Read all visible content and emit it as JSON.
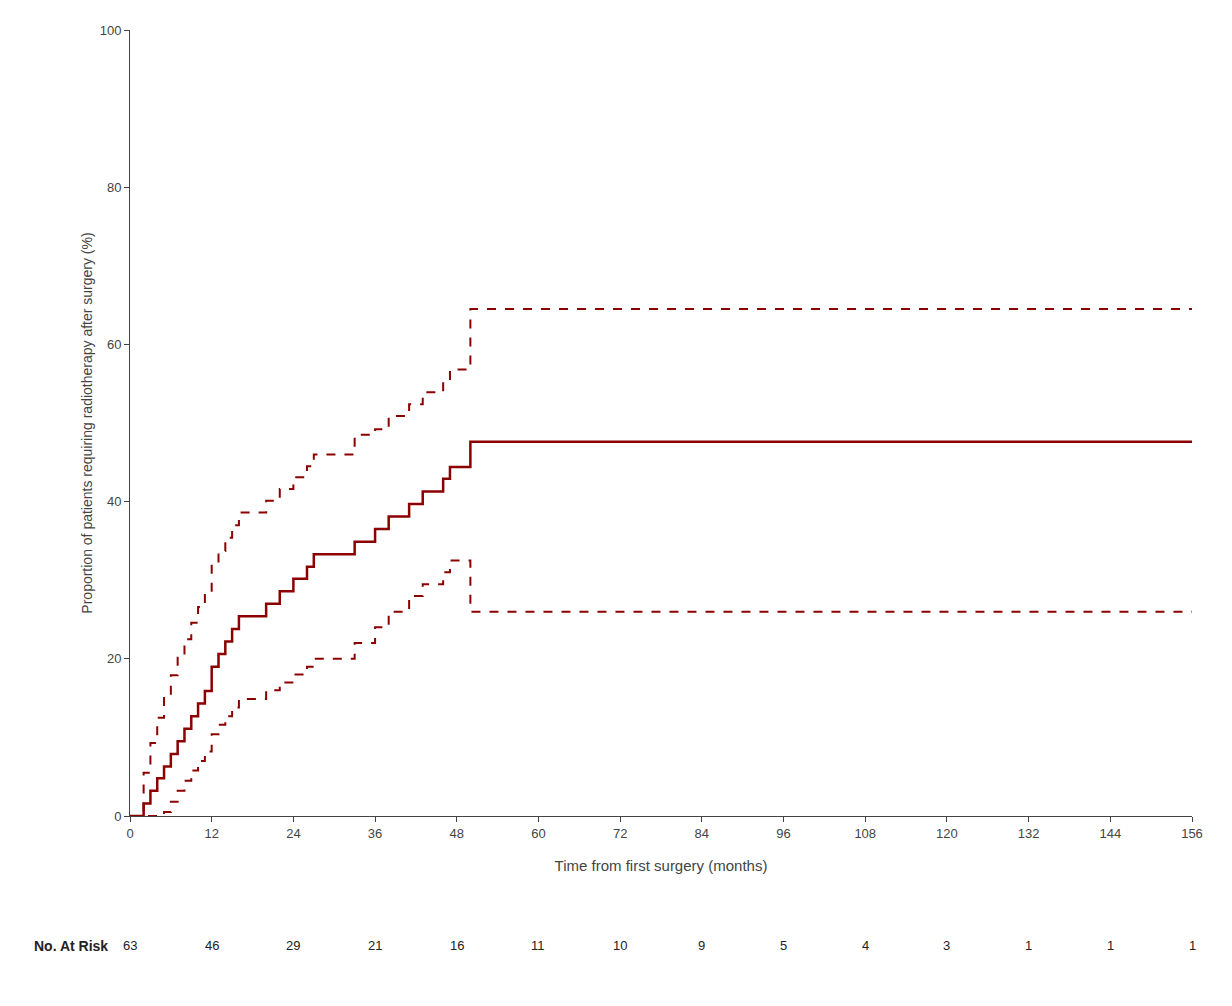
{
  "chart_data": {
    "type": "step",
    "xlabel": "Time from first surgery (months)",
    "ylabel": "Proportion of patients requiring radiotherapy after surgery (%)",
    "x": [
      0,
      1,
      2,
      3,
      4,
      5,
      6,
      7,
      8,
      9,
      10,
      11,
      12,
      13,
      14,
      15,
      16,
      18,
      20,
      22,
      24,
      26,
      27,
      30,
      33,
      36,
      38,
      41,
      43,
      46,
      47,
      48,
      50,
      54,
      57,
      156
    ],
    "series": [
      {
        "color": "#8B0000",
        "line_style": "solid",
        "values": [
          0,
          0,
          1.6,
          3.2,
          4.8,
          6.3,
          7.9,
          9.5,
          11.1,
          12.7,
          14.3,
          15.9,
          19.0,
          20.6,
          22.2,
          23.8,
          25.4,
          25.4,
          27.0,
          28.6,
          30.2,
          31.7,
          33.3,
          33.3,
          34.9,
          36.5,
          38.1,
          39.7,
          41.3,
          42.9,
          44.4,
          44.4,
          47.6,
          47.6,
          47.6,
          47.6
        ]
      },
      {
        "color": "#8B0000",
        "line_style": "dashed",
        "values": [
          0,
          0,
          5.5,
          9.3,
          12.5,
          15.3,
          17.9,
          20.3,
          22.5,
          24.6,
          26.6,
          28.5,
          32.0,
          33.7,
          35.4,
          37.0,
          38.6,
          38.6,
          40.1,
          41.6,
          43.1,
          44.5,
          46.0,
          46.0,
          48.5,
          49.2,
          50.9,
          52.4,
          53.9,
          55.4,
          56.8,
          56.8,
          64.5,
          64.5,
          64.5,
          64.5
        ]
      },
      {
        "color": "#8B0000",
        "line_style": "dashed",
        "values": [
          0,
          0,
          0,
          0,
          0,
          0.5,
          1.8,
          3.2,
          4.5,
          5.8,
          7.0,
          8.2,
          10.4,
          11.6,
          12.7,
          13.8,
          14.9,
          14.9,
          16.0,
          17.0,
          18.0,
          19.0,
          20.0,
          20.0,
          22.0,
          24.0,
          26.0,
          28.0,
          29.5,
          31.0,
          32.5,
          32.5,
          26.0,
          26.0,
          26.0,
          26.0
        ]
      }
    ],
    "xlim": [
      0,
      156
    ],
    "ylim": [
      0,
      100
    ],
    "xticks": [
      0,
      12,
      24,
      36,
      48,
      60,
      72,
      84,
      96,
      108,
      120,
      132,
      144,
      156
    ],
    "yticks": [
      0,
      20,
      40,
      60,
      80,
      100
    ],
    "grid": false,
    "at_risk_label": "No. At Risk",
    "at_risk_times": [
      0,
      12,
      24,
      36,
      48,
      60,
      72,
      84,
      96,
      108,
      120,
      132,
      144,
      156
    ],
    "at_risk_values": [
      63,
      46,
      29,
      21,
      16,
      11,
      10,
      9,
      5,
      4,
      3,
      1,
      1,
      1
    ]
  }
}
